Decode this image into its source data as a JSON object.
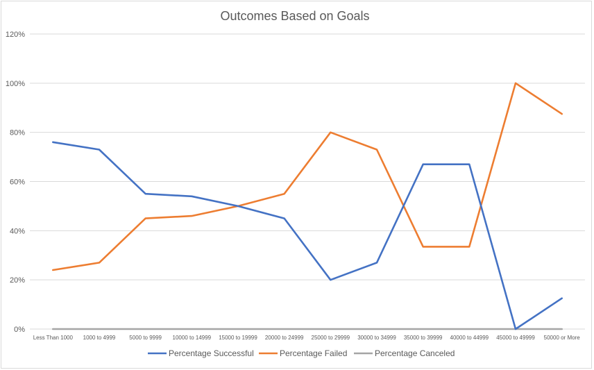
{
  "chart_data": {
    "type": "line",
    "title": "Outcomes Based on Goals",
    "xlabel": "",
    "ylabel": "",
    "categories": [
      "Less Than 1000",
      "1000 to 4999",
      "5000 to 9999",
      "10000 to 14999",
      "15000 to 19999",
      "20000 to 24999",
      "25000 to 29999",
      "30000 to 34999",
      "35000 to 39999",
      "40000 to 44999",
      "45000 to 49999",
      "50000 or More"
    ],
    "ylim": [
      0,
      120
    ],
    "yticks": [
      "0%",
      "20%",
      "40%",
      "60%",
      "80%",
      "100%",
      "120%"
    ],
    "grid": true,
    "legend_position": "bottom",
    "series": [
      {
        "name": "Percentage Successful",
        "color": "#4472c4",
        "values": [
          76,
          73,
          55,
          54,
          50,
          45,
          20,
          27,
          67,
          67,
          0,
          12.5
        ]
      },
      {
        "name": "Percentage Failed",
        "color": "#ed7d31",
        "values": [
          24,
          27,
          45,
          46,
          50,
          55,
          80,
          73,
          33.5,
          33.5,
          100,
          87.5
        ]
      },
      {
        "name": "Percentage Canceled",
        "color": "#a5a5a5",
        "values": [
          0,
          0,
          0,
          0,
          0,
          0,
          0,
          0,
          0,
          0,
          0,
          0
        ]
      }
    ]
  }
}
